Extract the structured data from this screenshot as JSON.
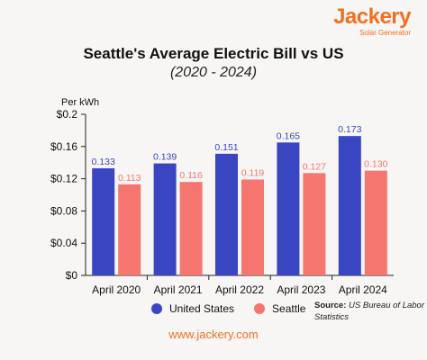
{
  "brand": {
    "name": "Jackery",
    "tagline": "Solar Generator"
  },
  "footer": {
    "url": "www.jackery.com"
  },
  "source": {
    "label": "Source",
    "text": "US Bureau of Labor Statistics"
  },
  "colors": {
    "us": "#3a46c1",
    "seattle": "#f5756f",
    "brand": "#f26f21"
  },
  "chart_data": {
    "type": "bar",
    "title": "Seattle's Average Electric Bill vs US",
    "subtitle": "(2020 - 2024)",
    "ylabel": "Per kWh",
    "xlabel": "",
    "categories": [
      "April 2020",
      "April 2021",
      "April 2022",
      "April 2023",
      "April 2024"
    ],
    "series": [
      {
        "name": "United States",
        "values": [
          0.133,
          0.139,
          0.151,
          0.165,
          0.173
        ],
        "labels": [
          "0.133",
          "0.139",
          "0.151",
          "0.165",
          "0.173"
        ],
        "color": "#3a46c1"
      },
      {
        "name": "Seattle",
        "values": [
          0.113,
          0.116,
          0.119,
          0.127,
          0.13
        ],
        "labels": [
          "0.113",
          "0.116",
          "0.119",
          "0.127",
          "0.130"
        ],
        "color": "#f5756f"
      }
    ],
    "ylim": [
      0,
      0.2
    ],
    "yticks": [
      0,
      0.04,
      0.08,
      0.12,
      0.16,
      0.2
    ],
    "ytick_labels": [
      "$0",
      "$0.04",
      "$0.08",
      "$0.12",
      "$0.16",
      "$0.2"
    ],
    "grid": false,
    "legend": "bottom"
  }
}
